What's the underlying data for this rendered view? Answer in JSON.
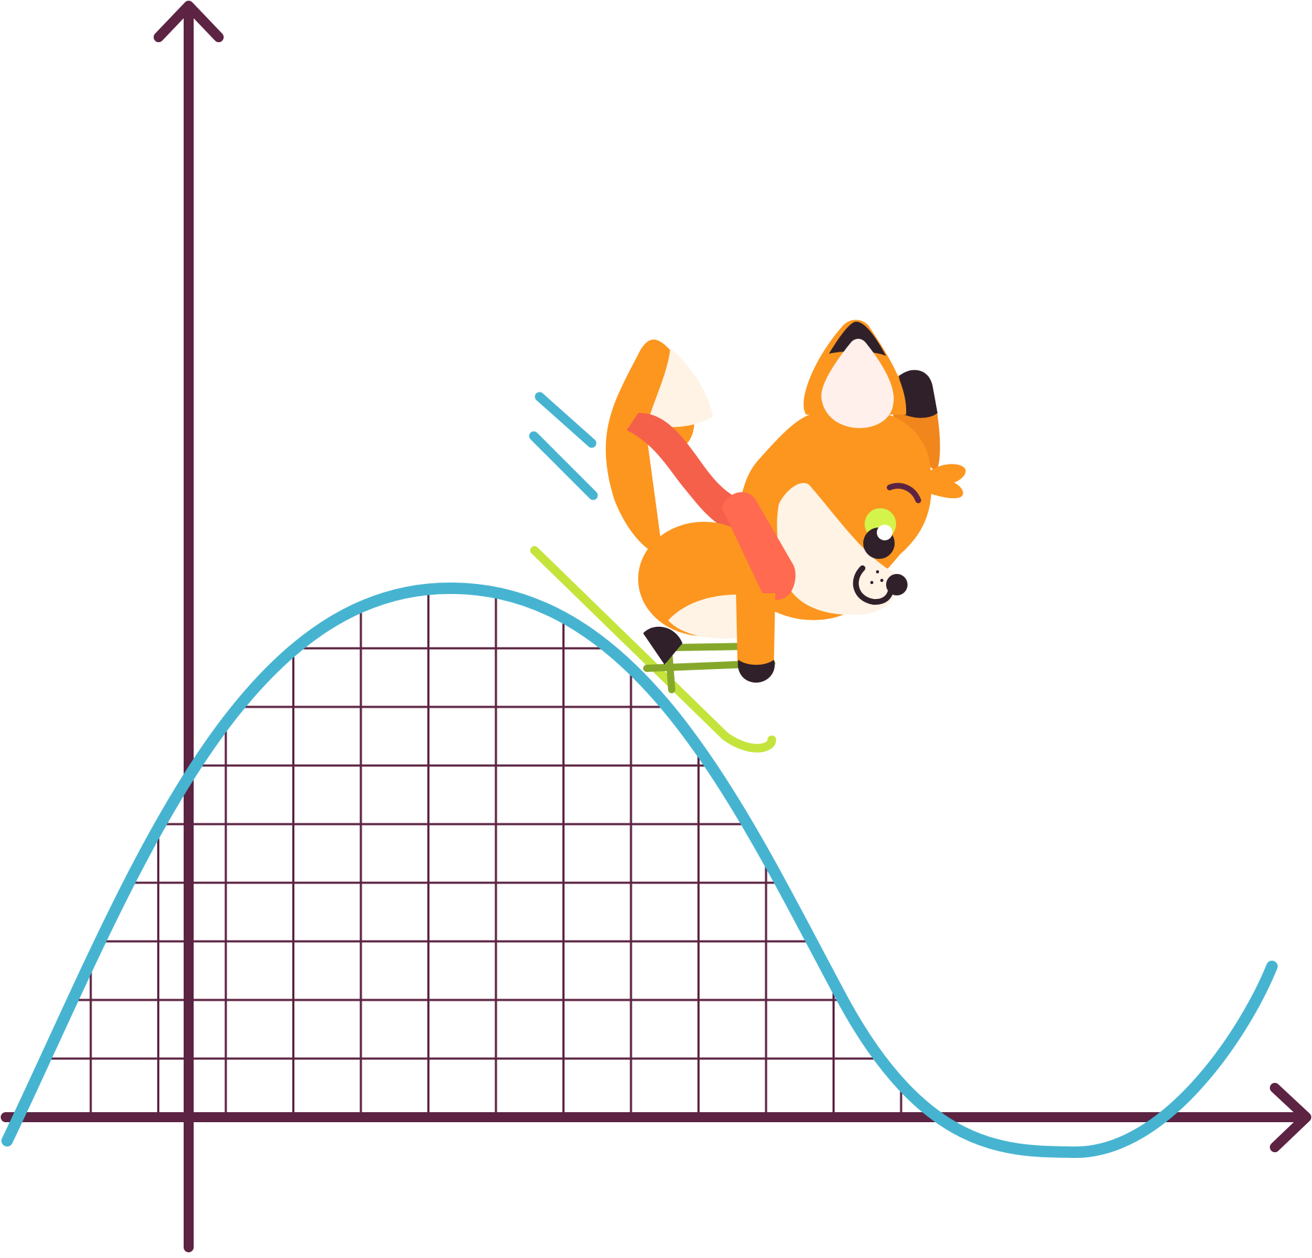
{
  "illustration": {
    "subject": "fox-skiing-down-curve",
    "colors": {
      "axis": "#5c2342",
      "grid": "#5c2342",
      "curve": "#46b4d0",
      "speed_lines": "#46b4d0",
      "ski": "#c4e43c",
      "fox_orange": "#fc961e",
      "fox_cream": "#fff3e6",
      "fox_dark": "#30202a",
      "scarf": "#f4604a",
      "eye_ring": "#d4f44c",
      "pole": "#86a82a"
    }
  }
}
